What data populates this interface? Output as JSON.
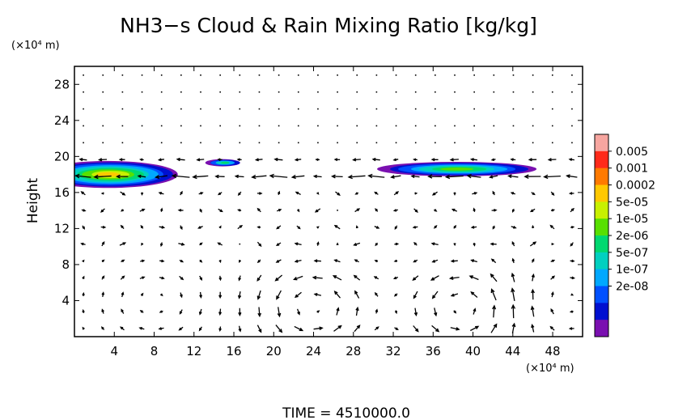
{
  "chart_data": {
    "type": "heatmap",
    "title": "NH3−s Cloud & Rain Mixing Ratio [kg/kg]",
    "ylabel": "Height",
    "x_unit": "(×10⁴ m)",
    "y_unit": "(×10⁴ m)",
    "footer": "TIME  =  4510000.0",
    "xlim": [
      0,
      51
    ],
    "ylim": [
      0,
      30
    ],
    "x_ticks": [
      4,
      8,
      12,
      16,
      20,
      24,
      28,
      32,
      36,
      40,
      44,
      48
    ],
    "y_ticks": [
      4,
      8,
      12,
      16,
      20,
      24,
      28
    ],
    "colorbar": {
      "labels": [
        "0.005",
        "0.001",
        "0.0002",
        "5e-05",
        "1e-05",
        "2e-06",
        "5e-07",
        "1e-07",
        "2e-08"
      ],
      "colors_top_to_bottom": [
        "#f7a6a0",
        "#ff2a1a",
        "#ff7a00",
        "#ffc800",
        "#c8f000",
        "#58e000",
        "#00d870",
        "#00d0c0",
        "#00a8ff",
        "#0050ff",
        "#0010d0",
        "#7a10b0"
      ]
    },
    "cloud_regions": [
      {
        "x_center": 3.5,
        "y_center": 18.0,
        "width": 14.0,
        "height": 3.0,
        "peak_level": "0.0002"
      },
      {
        "x_center": 38.5,
        "y_center": 18.6,
        "width": 16.0,
        "height": 1.6,
        "peak_level": "1e-05"
      },
      {
        "x_center": 15.0,
        "y_center": 19.3,
        "width": 3.5,
        "height": 0.8,
        "peak_level": "2e-06"
      }
    ],
    "vector_field": "wind vectors on a regular grid; two counter-rotating circulation cells centered near x=24, y=3 and x=39, y=3; strong horizontal flow near y=18"
  }
}
